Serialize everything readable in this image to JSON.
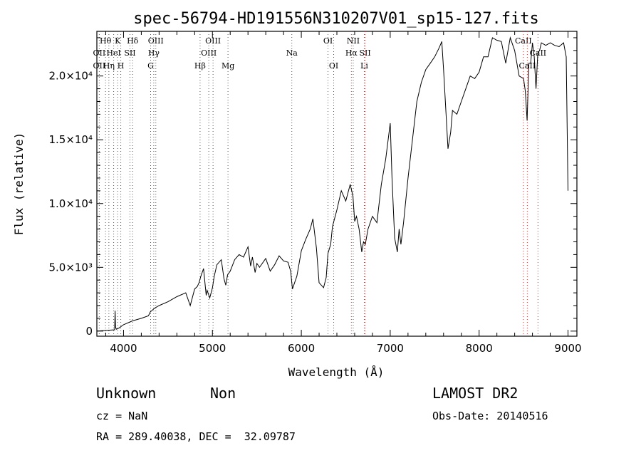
{
  "chart_data": {
    "type": "line",
    "title": "spec-56794-HD191556N310207V01_sp15-127.fits",
    "xlabel": "Wavelength (Å)",
    "ylabel": "Flux (relative)",
    "xlim": [
      3700,
      9100
    ],
    "ylim": [
      -400,
      23500
    ],
    "x_ticks": [
      4000,
      5000,
      6000,
      7000,
      8000,
      9000
    ],
    "x_tick_labels": [
      "4000",
      "5000",
      "6000",
      "7000",
      "8000",
      "9000"
    ],
    "y_ticks": [
      0,
      5000,
      10000,
      15000,
      20000
    ],
    "y_tick_labels": [
      "0",
      "5.0×10³",
      "1.0×10⁴",
      "1.5×10⁴",
      "2.0×10⁴"
    ],
    "series": [
      {
        "x": [
          3700,
          3800,
          3900,
          3905,
          3910,
          3920,
          3950,
          4000,
          4100,
          4200,
          4280,
          4300,
          4350,
          4400,
          4500,
          4600,
          4700,
          4750,
          4800,
          4830,
          4850,
          4870,
          4900,
          4930,
          4940,
          4970,
          5000,
          5020,
          5050,
          5100,
          5130,
          5150,
          5170,
          5200,
          5250,
          5300,
          5350,
          5400,
          5430,
          5450,
          5480,
          5500,
          5530,
          5600,
          5650,
          5700,
          5750,
          5800,
          5850,
          5880,
          5900,
          5950,
          6000,
          6050,
          6100,
          6130,
          6170,
          6200,
          6250,
          6280,
          6300,
          6330,
          6350,
          6400,
          6450,
          6500,
          6550,
          6580,
          6600,
          6620,
          6650,
          6680,
          6700,
          6720,
          6750,
          6800,
          6850,
          6900,
          6950,
          7000,
          7020,
          7050,
          7080,
          7100,
          7120,
          7150,
          7200,
          7250,
          7300,
          7350,
          7400,
          7450,
          7500,
          7550,
          7580,
          7600,
          7620,
          7650,
          7680,
          7700,
          7750,
          7800,
          7850,
          7900,
          7950,
          8000,
          8050,
          8100,
          8150,
          8200,
          8250,
          8300,
          8350,
          8400,
          8450,
          8500,
          8520,
          8540,
          8560,
          8580,
          8600,
          8620,
          8640,
          8660,
          8680,
          8700,
          8750,
          8800,
          8850,
          8900,
          8950,
          8980,
          9000
        ],
        "y": [
          0,
          50,
          100,
          1600,
          300,
          150,
          250,
          500,
          800,
          1000,
          1200,
          1500,
          1800,
          2000,
          2300,
          2700,
          3000,
          2000,
          3300,
          3500,
          3800,
          4300,
          4900,
          2800,
          3200,
          2600,
          3400,
          4300,
          5200,
          5600,
          4100,
          3600,
          4400,
          4700,
          5600,
          6000,
          5800,
          6600,
          5100,
          5800,
          4600,
          5300,
          5000,
          5700,
          4700,
          5200,
          5900,
          5500,
          5400,
          4700,
          3300,
          4300,
          6300,
          7200,
          8000,
          8800,
          6500,
          3800,
          3400,
          4200,
          6100,
          6800,
          8200,
          9500,
          11000,
          10200,
          11500,
          10600,
          8600,
          9000,
          8000,
          6200,
          7000,
          6800,
          8000,
          9000,
          8500,
          11500,
          13500,
          16300,
          12000,
          7300,
          6200,
          8000,
          6800,
          8500,
          12000,
          15000,
          18000,
          19500,
          20500,
          21000,
          21500,
          22200,
          22700,
          20500,
          18000,
          14300,
          15600,
          17300,
          17000,
          18000,
          19000,
          20000,
          19800,
          20300,
          21500,
          21500,
          23000,
          22800,
          22700,
          21000,
          23000,
          22000,
          20000,
          19800,
          18800,
          16500,
          21000,
          21000,
          22600,
          21500,
          19000,
          21800,
          22000,
          22600,
          22400,
          22600,
          22400,
          22300,
          22600,
          21500,
          11000
        ]
      }
    ],
    "lines": {
      "row1": [
        {
          "label": "Hθ",
          "x": 3797,
          "color": "#555555"
        },
        {
          "label": "K",
          "x": 3934,
          "color": "#555555"
        },
        {
          "label": "Hδ",
          "x": 4102,
          "color": "#555555"
        },
        {
          "label": "OIII",
          "x": 4363,
          "color": "#555555"
        },
        {
          "label": "OIII",
          "x": 5007,
          "color": "#555555"
        },
        {
          "label": "OI",
          "x": 6300,
          "color": "#555555"
        },
        {
          "label": "NII",
          "x": 6584,
          "color": "#555555"
        }
      ],
      "row2": [
        {
          "label": "OII",
          "x": 3727,
          "color": "#555555"
        },
        {
          "label": "HeI",
          "x": 3889,
          "color": "#555555"
        },
        {
          "label": "SII",
          "x": 4072,
          "color": "#555555"
        },
        {
          "label": "Hγ",
          "x": 4340,
          "color": "#555555"
        },
        {
          "label": "OIII",
          "x": 4959,
          "color": "#555555"
        },
        {
          "label": "Na",
          "x": 5893,
          "color": "#555555"
        },
        {
          "label": "Hα",
          "x": 6563,
          "color": "#aa4444"
        },
        {
          "label": "SII",
          "x": 6717,
          "color": "#aa4444"
        }
      ],
      "row3": [
        {
          "label": "OII",
          "x": 3727,
          "color": "#555555"
        },
        {
          "label": "Hη",
          "x": 3835,
          "color": "#555555"
        },
        {
          "label": "H",
          "x": 3969,
          "color": "#555555"
        },
        {
          "label": "G",
          "x": 4305,
          "color": "#555555"
        },
        {
          "label": "Hβ",
          "x": 4861,
          "color": "#555555"
        },
        {
          "label": "Mg",
          "x": 5175,
          "color": "#555555"
        },
        {
          "label": "OI",
          "x": 6364,
          "color": "#555555"
        },
        {
          "label": "Li",
          "x": 6708,
          "color": "#aa4444"
        }
      ],
      "right": [
        {
          "label": "CaII",
          "x": 8498,
          "row": 1,
          "color": "#aa4444"
        },
        {
          "label": "CaII",
          "x": 8662,
          "row": 2,
          "color": "#aa4444"
        },
        {
          "label": "CaII",
          "x": 8542,
          "row": 3,
          "color": "#aa4444"
        }
      ]
    }
  },
  "info": {
    "object_class": "Unknown",
    "object_subclass": "Non",
    "survey": "LAMOST DR2",
    "redshift": "cz = NaN",
    "obs_date": "Obs-Date: 20140516",
    "coords": "RA = 289.40038, DEC =  32.09787"
  }
}
